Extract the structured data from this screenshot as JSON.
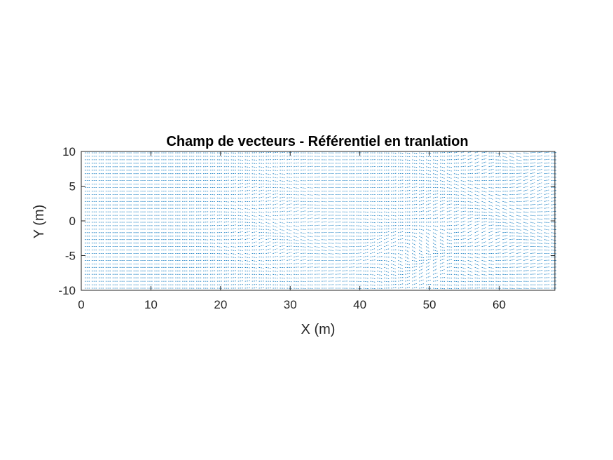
{
  "chart_data": {
    "type": "quiver",
    "title": "Champ de vecteurs - Référentiel en tranlation",
    "xlabel": "X (m)",
    "ylabel": "Y (m)",
    "xlim": [
      0,
      68
    ],
    "ylim": [
      -10,
      10
    ],
    "xticks": [
      0,
      10,
      20,
      30,
      40,
      50,
      60
    ],
    "yticks": [
      10,
      5,
      0,
      -5,
      -10
    ],
    "grid": false,
    "box": true,
    "arrow_color": "#0072BD",
    "axes_color": "#262626",
    "grid_spacing": {
      "dx": 1,
      "dy": 0.5
    },
    "flow": {
      "mean_direction": "+x",
      "notes": "dense vector field, mostly horizontal; disturbances near x≈25–30, x≈45–50 and x≈55–68"
    }
  }
}
